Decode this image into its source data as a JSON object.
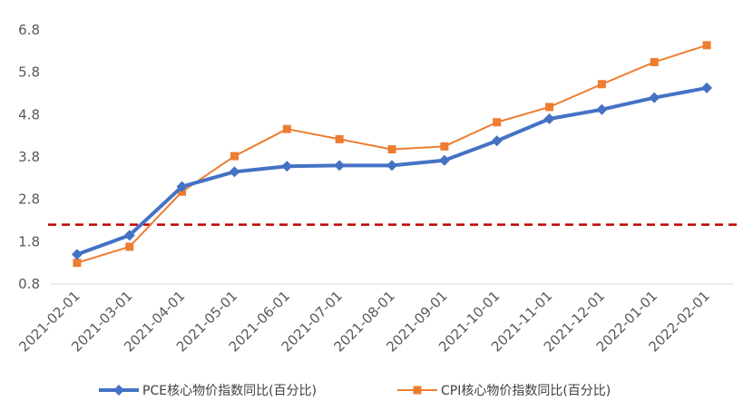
{
  "chart_data": {
    "type": "line",
    "title": "",
    "xlabel": "",
    "ylabel": "",
    "categories": [
      "2021-02-01",
      "2021-03-01",
      "2021-04-01",
      "2021-05-01",
      "2021-06-01",
      "2021-07-01",
      "2021-08-01",
      "2021-09-01",
      "2021-10-01",
      "2021-11-01",
      "2021-12-01",
      "2022-01-01",
      "2022-02-01"
    ],
    "yticks": [
      "0.8",
      "1.8",
      "2.8",
      "3.8",
      "4.8",
      "5.8",
      "6.8"
    ],
    "ylim": [
      0.8,
      6.8
    ],
    "reference_line": {
      "value": 2.2,
      "color": "#c00000",
      "style": "dashed"
    },
    "series": [
      {
        "name": "PCE核心物价指数同比(百分比)",
        "color": "#4472c4",
        "marker": "diamond",
        "values": [
          1.5,
          1.95,
          3.1,
          3.45,
          3.58,
          3.6,
          3.6,
          3.72,
          4.18,
          4.7,
          4.92,
          5.2,
          5.43
        ]
      },
      {
        "name": "CPI核心物价指数同比(百分比)",
        "color": "#ed7d31",
        "marker": "square",
        "values": [
          1.3,
          1.68,
          2.98,
          3.82,
          4.46,
          4.22,
          3.98,
          4.05,
          4.62,
          4.98,
          5.52,
          6.04,
          6.44
        ]
      }
    ],
    "grid": false,
    "legend_position": "bottom"
  }
}
